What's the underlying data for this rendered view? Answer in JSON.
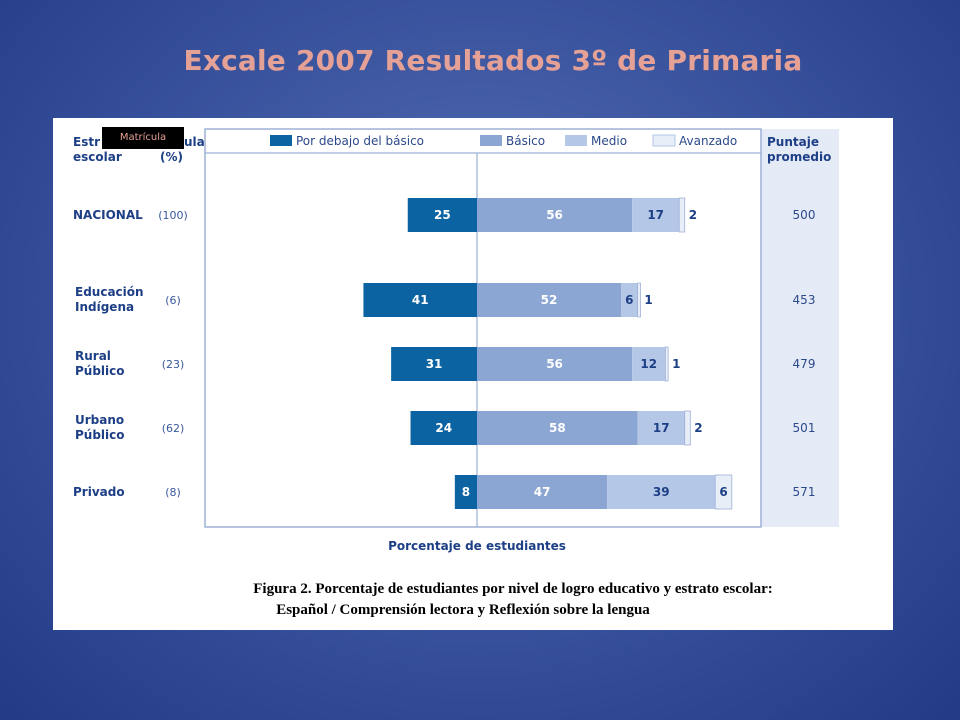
{
  "slide": {
    "title": "Excale 2007 Resultados 3º de Primaria"
  },
  "tag": {
    "label": "Matrícula"
  },
  "header": {
    "stratum_line1": "Estr",
    "stratum_line2": "escolar",
    "pct_line1": "ula",
    "pct_line2": "(%)",
    "score_line1": "Puntaje",
    "score_line2": "promedio"
  },
  "legend": {
    "below_basic": "Por debajo del básico",
    "basic": "Básico",
    "medium": "Medio",
    "advanced": "Avanzado"
  },
  "colors": {
    "below_basic": "#0b63a1",
    "basic": "#8ba6d3",
    "medium": "#b5c7e6",
    "advanced": "#e8eef8",
    "score_panel": "#e4eaf6"
  },
  "chart_data": {
    "type": "bar",
    "orientation": "horizontal-diverging",
    "xlabel": "Porcentaje de estudiantes",
    "caption_line1": "Figura 2. Porcentaje de estudiantes por nivel de logro educativo y estrato escolar:",
    "caption_line2": "Español / Comprensión lectora y Reflexión sobre la lengua",
    "categories": [
      {
        "line1": "NACIONAL",
        "line2": "",
        "enrollment": "(100)",
        "score": "500"
      },
      {
        "line1": "Educación",
        "line2": "Indígena",
        "enrollment": "(6)",
        "score": "453"
      },
      {
        "line1": "Rural",
        "line2": "Público",
        "enrollment": "(23)",
        "score": "479"
      },
      {
        "line1": "Urbano",
        "line2": "Público",
        "enrollment": "(62)",
        "score": "501"
      },
      {
        "line1": "Privado",
        "line2": "",
        "enrollment": "(8)",
        "score": "571"
      }
    ],
    "series": [
      {
        "name": "Por debajo del básico",
        "values": [
          25,
          41,
          31,
          24,
          8
        ]
      },
      {
        "name": "Básico",
        "values": [
          56,
          52,
          56,
          58,
          47
        ]
      },
      {
        "name": "Medio",
        "values": [
          17,
          6,
          12,
          17,
          39
        ]
      },
      {
        "name": "Avanzado",
        "values": [
          2,
          1,
          1,
          2,
          6
        ]
      }
    ]
  }
}
